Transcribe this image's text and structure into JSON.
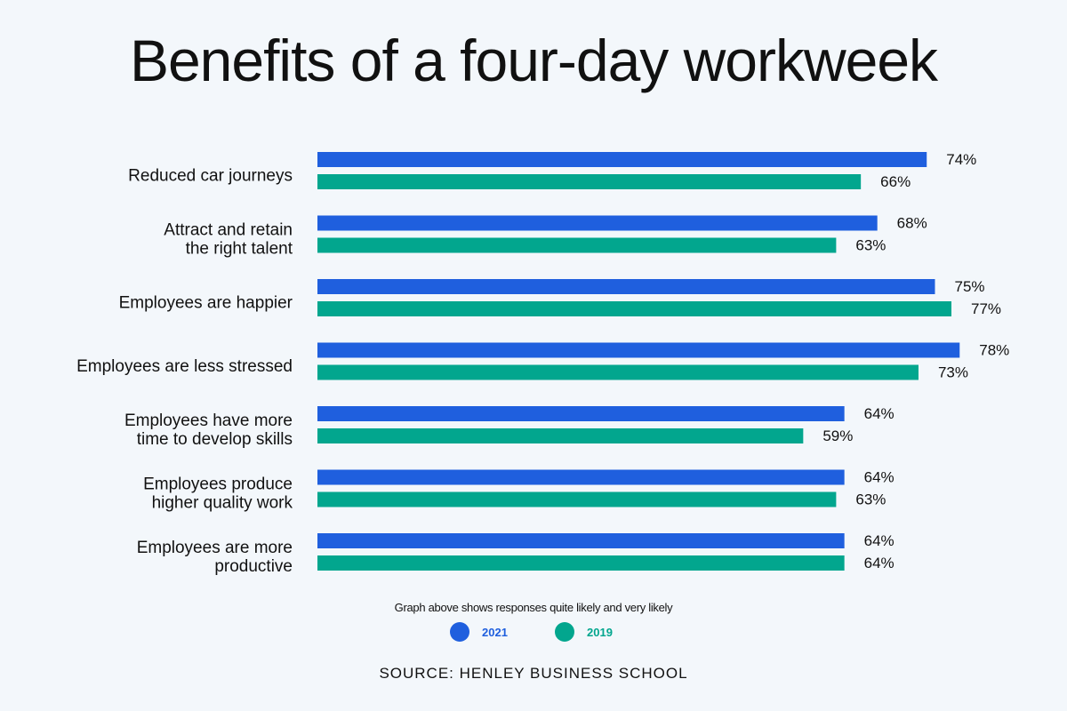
{
  "chart_data": {
    "type": "bar",
    "orientation": "horizontal",
    "title": "Benefits of a four-day workweek",
    "categories": [
      [
        "Reduced car journeys"
      ],
      [
        "Attract and retain",
        "the right talent"
      ],
      [
        "Employees are happier"
      ],
      [
        "Employees are less stressed"
      ],
      [
        "Employees have more",
        "time to develop skills"
      ],
      [
        "Employees produce",
        "higher quality work"
      ],
      [
        "Employees are more",
        "productive"
      ]
    ],
    "series": [
      {
        "name": "2021",
        "color": "#1f5fde",
        "values": [
          74,
          68,
          75,
          78,
          64,
          64,
          64
        ]
      },
      {
        "name": "2019",
        "color": "#02a68e",
        "values": [
          66,
          63,
          77,
          73,
          59,
          63,
          64
        ]
      }
    ],
    "value_suffix": "%",
    "xlim": [
      0,
      80
    ],
    "grid": false,
    "legend_placement": "bottom",
    "note": "Graph above shows responses quite likely and very likely",
    "source": "SOURCE: HENLEY BUSINESS SCHOOL"
  }
}
